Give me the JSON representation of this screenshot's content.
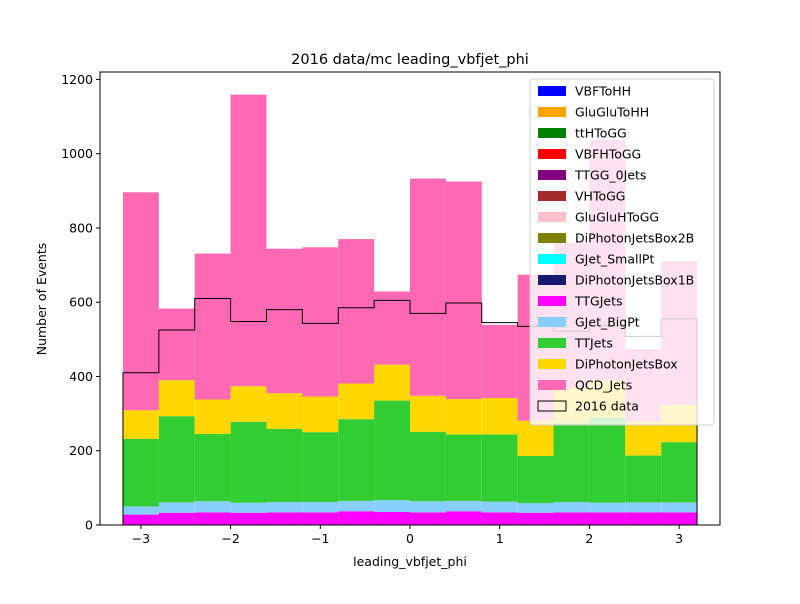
{
  "chart_data": {
    "type": "bar",
    "stacked": true,
    "title": "2016 data/mc leading_vbfjet_phi",
    "xlabel": "leading_vbfjet_phi",
    "ylabel": "Number of Events",
    "xlim": [
      -3.456,
      3.456
    ],
    "ylim": [
      0,
      1220
    ],
    "bin_edges": [
      -3.2,
      -2.8,
      -2.4,
      -2.0,
      -1.6,
      -1.2,
      -0.8,
      -0.4,
      0.0,
      0.4,
      0.8,
      1.2,
      1.6,
      2.0,
      2.4,
      2.8,
      3.2
    ],
    "x_ticks": [
      -3,
      -2,
      -1,
      0,
      1,
      2,
      3
    ],
    "x_tick_labels": [
      "−3",
      "−2",
      "−1",
      "0",
      "1",
      "2",
      "3"
    ],
    "y_ticks": [
      0,
      200,
      400,
      600,
      800,
      1000,
      1200
    ],
    "y_tick_labels": [
      "0",
      "200",
      "400",
      "600",
      "800",
      "1000",
      "1200"
    ],
    "grid": false,
    "legend_position": "top-right",
    "series": [
      {
        "name": "VBFToHH",
        "color": "#0000ff",
        "values": [
          0,
          0,
          0,
          0,
          0,
          0,
          0,
          0,
          0,
          0,
          0,
          0,
          0,
          0,
          0,
          0
        ]
      },
      {
        "name": "GluGluToHH",
        "color": "#ffa500",
        "values": [
          0,
          0,
          0,
          0,
          0,
          0,
          0,
          0,
          0,
          0,
          0,
          0,
          0,
          0,
          0,
          0
        ]
      },
      {
        "name": "ttHToGG",
        "color": "#008000",
        "values": [
          0,
          0,
          0,
          0,
          0,
          0,
          0,
          0,
          0,
          0,
          0,
          0,
          0,
          0,
          0,
          0
        ]
      },
      {
        "name": "VBFHToGG",
        "color": "#ff0000",
        "values": [
          0,
          0,
          0,
          0,
          0,
          0,
          0,
          0,
          0,
          0,
          0,
          0,
          0,
          0,
          0,
          0
        ]
      },
      {
        "name": "TTGG_0Jets",
        "color": "#800080",
        "values": [
          0,
          0,
          0,
          0,
          0,
          0,
          0,
          0,
          0,
          0,
          0,
          0,
          0,
          0,
          0,
          0
        ]
      },
      {
        "name": "VHToGG",
        "color": "#a52a2a",
        "values": [
          0,
          0,
          0,
          0,
          0,
          0,
          0,
          0,
          0,
          0,
          0,
          0,
          0,
          0,
          0,
          0
        ]
      },
      {
        "name": "GluGluHToGG",
        "color": "#ffc0cb",
        "values": [
          0,
          0,
          0,
          0,
          0,
          0,
          0,
          0,
          0,
          0,
          0,
          0,
          0,
          0,
          0,
          0
        ]
      },
      {
        "name": "DiPhotonJetsBox2B",
        "color": "#808000",
        "values": [
          0,
          0,
          0,
          0,
          0,
          0,
          0,
          0,
          0,
          0,
          0,
          0,
          0,
          0,
          0,
          0
        ]
      },
      {
        "name": "GJet_SmallPt",
        "color": "#00ffff",
        "values": [
          0,
          0,
          0,
          0,
          0,
          0,
          0,
          0,
          0,
          0,
          0,
          0,
          0,
          0,
          0,
          0
        ]
      },
      {
        "name": "DiPhotonJetsBox1B",
        "color": "#191970",
        "values": [
          0,
          0,
          0,
          0,
          0,
          0,
          0,
          0,
          0,
          0,
          0,
          0,
          0,
          0,
          0,
          0
        ]
      },
      {
        "name": "TTGJets",
        "color": "#ff00ff",
        "values": [
          28,
          33,
          34,
          33,
          34,
          34,
          37,
          35,
          34,
          37,
          34,
          33,
          34,
          34,
          34,
          34
        ]
      },
      {
        "name": "GJet_BigPt",
        "color": "#87cefa",
        "values": [
          22,
          28,
          30,
          27,
          28,
          28,
          28,
          32,
          30,
          28,
          29,
          26,
          28,
          26,
          27,
          27
        ]
      },
      {
        "name": "TTJets",
        "color": "#32cd32",
        "values": [
          182,
          232,
          181,
          218,
          197,
          188,
          220,
          268,
          187,
          179,
          181,
          127,
          212,
          230,
          126,
          162
        ]
      },
      {
        "name": "DiPhotonJetsBox",
        "color": "#ffd700",
        "values": [
          77,
          97,
          93,
          96,
          96,
          96,
          96,
          97,
          97,
          95,
          98,
          95,
          95,
          100,
          92,
          100
        ]
      },
      {
        "name": "QCD_Jets",
        "color": "#ff69b4",
        "values": [
          587,
          193,
          393,
          785,
          389,
          402,
          389,
          197,
          585,
          586,
          197,
          393,
          390,
          647,
          195,
          388
        ]
      }
    ],
    "data_series": {
      "name": "2016 data",
      "color": "#000000",
      "values": [
        410,
        525,
        610,
        548,
        580,
        543,
        585,
        605,
        570,
        598,
        545,
        535,
        522,
        538,
        508,
        555
      ]
    }
  }
}
